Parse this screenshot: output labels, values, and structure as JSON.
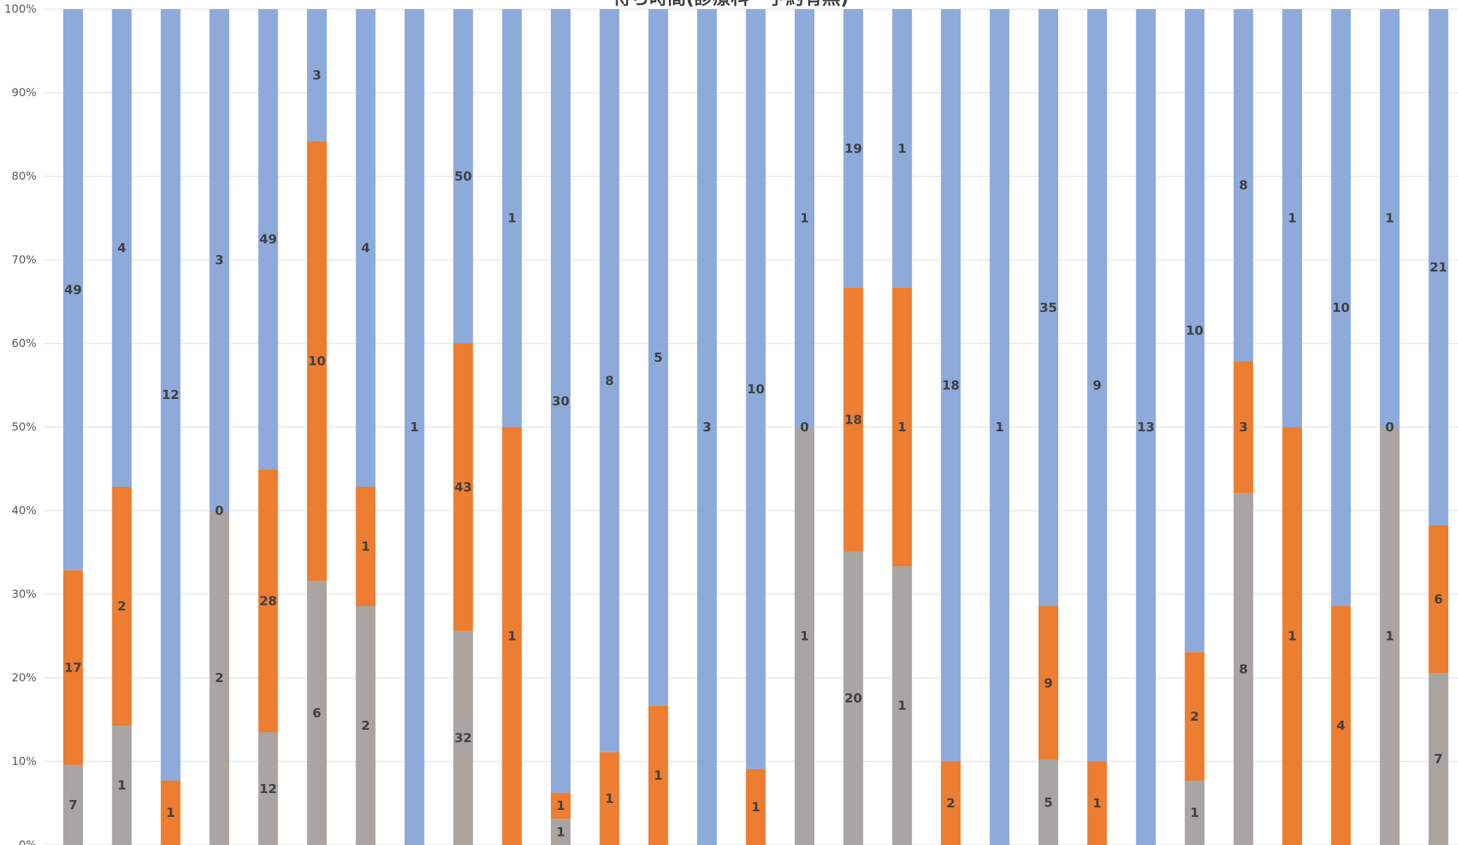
{
  "chart_data": {
    "type": "bar",
    "stacked": "percent",
    "title": "待ち時間(診療科・予約有無)",
    "ylim": [
      0,
      100
    ],
    "yticks": [
      "0%",
      "10%",
      "20%",
      "30%",
      "40%",
      "50%",
      "60%",
      "70%",
      "80%",
      "90%",
      "100%"
    ],
    "grid": true,
    "colors": {
      "gray": "#a9a5a3",
      "orange": "#ed7d31",
      "blue": "#8eaadb"
    },
    "series": [
      {
        "color": "gray",
        "values": [
          7,
          1,
          0,
          2,
          12,
          6,
          2,
          0,
          32,
          0,
          1,
          0,
          0,
          0,
          0,
          1,
          20,
          1,
          0,
          0,
          5,
          0,
          0,
          1,
          8,
          0,
          0,
          1,
          7
        ]
      },
      {
        "color": "orange",
        "values": [
          17,
          2,
          1,
          0,
          28,
          10,
          1,
          0,
          43,
          1,
          1,
          1,
          1,
          0,
          1,
          0,
          18,
          1,
          2,
          0,
          9,
          1,
          0,
          2,
          3,
          1,
          4,
          0,
          6
        ]
      },
      {
        "color": "blue",
        "values": [
          49,
          4,
          12,
          3,
          49,
          3,
          4,
          1,
          50,
          1,
          30,
          8,
          5,
          3,
          10,
          1,
          19,
          1,
          18,
          1,
          35,
          9,
          13,
          10,
          8,
          1,
          10,
          1,
          21
        ]
      }
    ],
    "labels": [
      [
        "7",
        "17",
        "49"
      ],
      [
        "1",
        "2",
        "4"
      ],
      [
        "",
        "1",
        "12"
      ],
      [
        "2",
        "0",
        "3"
      ],
      [
        "12",
        "28",
        "49"
      ],
      [
        "6",
        "10",
        "3"
      ],
      [
        "2",
        "1",
        "4"
      ],
      [
        "",
        "",
        "1"
      ],
      [
        "32",
        "43",
        "50"
      ],
      [
        "",
        "1",
        "1"
      ],
      [
        "1",
        "1",
        "30"
      ],
      [
        "",
        "1",
        "8"
      ],
      [
        "",
        "1",
        "5"
      ],
      [
        "",
        "",
        "3"
      ],
      [
        "",
        "1",
        "10"
      ],
      [
        "1",
        "0",
        "1"
      ],
      [
        "20",
        "18",
        "19"
      ],
      [
        "1",
        "1",
        "1"
      ],
      [
        "",
        "2",
        "18"
      ],
      [
        "",
        "",
        "1"
      ],
      [
        "5",
        "9",
        "35"
      ],
      [
        "",
        "1",
        "9"
      ],
      [
        "",
        "",
        "13"
      ],
      [
        "1",
        "2",
        "10"
      ],
      [
        "8",
        "3",
        "8"
      ],
      [
        "",
        "1",
        "1"
      ],
      [
        "",
        "4",
        "10"
      ],
      [
        "1",
        "0",
        "1"
      ],
      [
        "7",
        "6",
        "21"
      ]
    ]
  }
}
